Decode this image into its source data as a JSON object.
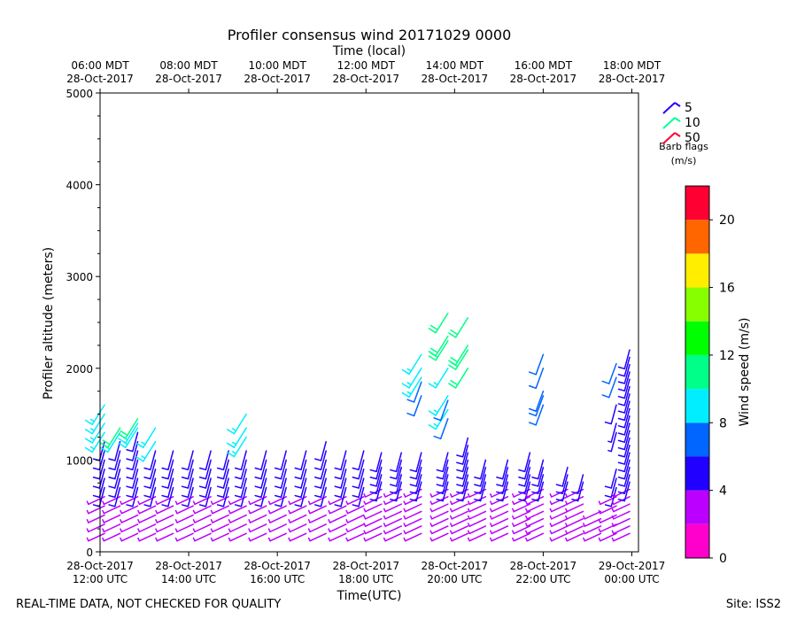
{
  "chart_data": {
    "type": "wind-barb-profile",
    "title": "Profiler consensus wind 20171029 0000",
    "xlabel": "Time(UTC)",
    "top_xlabel": "Time (local)",
    "ylabel": "Profiler altitude (meters)",
    "ylim": [
      0,
      5000
    ],
    "xlim_hours_utc": [
      12.0,
      24.15
    ],
    "y_ticks": [
      0,
      1000,
      2000,
      3000,
      4000,
      5000
    ],
    "y_tick_labels": [
      "0",
      "1000",
      "2000",
      "3000",
      "4000",
      "5000"
    ],
    "bottom_ticks": [
      {
        "hour": 12,
        "line1": "28-Oct-2017",
        "line2": "12:00 UTC"
      },
      {
        "hour": 14,
        "line1": "28-Oct-2017",
        "line2": "14:00 UTC"
      },
      {
        "hour": 16,
        "line1": "28-Oct-2017",
        "line2": "16:00 UTC"
      },
      {
        "hour": 18,
        "line1": "28-Oct-2017",
        "line2": "18:00 UTC"
      },
      {
        "hour": 20,
        "line1": "28-Oct-2017",
        "line2": "20:00 UTC"
      },
      {
        "hour": 22,
        "line1": "28-Oct-2017",
        "line2": "22:00 UTC"
      },
      {
        "hour": 24,
        "line1": "29-Oct-2017",
        "line2": "00:00 UTC"
      }
    ],
    "top_ticks": [
      {
        "hour": 12,
        "line1": "06:00 MDT",
        "line2": "28-Oct-2017"
      },
      {
        "hour": 14,
        "line1": "08:00 MDT",
        "line2": "28-Oct-2017"
      },
      {
        "hour": 16,
        "line1": "10:00 MDT",
        "line2": "28-Oct-2017"
      },
      {
        "hour": 18,
        "line1": "12:00 MDT",
        "line2": "28-Oct-2017"
      },
      {
        "hour": 20,
        "line1": "14:00 MDT",
        "line2": "28-Oct-2017"
      },
      {
        "hour": 22,
        "line1": "16:00 MDT",
        "line2": "28-Oct-2017"
      },
      {
        "hour": 24,
        "line1": "18:00 MDT",
        "line2": "28-Oct-2017"
      }
    ],
    "barb_legend": {
      "entries": [
        {
          "value": "5",
          "color": "#2200ff"
        },
        {
          "value": "10",
          "color": "#00ff99"
        },
        {
          "value": "50",
          "color": "#ff0033"
        }
      ],
      "title_line1": "Barb flags",
      "title_line2": "(m/s)"
    },
    "colorbar": {
      "label": "Wind speed (m/s)",
      "min": 0,
      "max": 22,
      "bins": [
        {
          "from": 0,
          "to": 2,
          "color": "#ff00cc"
        },
        {
          "from": 2,
          "to": 4,
          "color": "#bb00ff"
        },
        {
          "from": 4,
          "to": 6,
          "color": "#2200ff"
        },
        {
          "from": 6,
          "to": 8,
          "color": "#0066ff"
        },
        {
          "from": 8,
          "to": 10,
          "color": "#00eeff"
        },
        {
          "from": 10,
          "to": 12,
          "color": "#00ff88"
        },
        {
          "from": 12,
          "to": 14,
          "color": "#00ff00"
        },
        {
          "from": 14,
          "to": 16,
          "color": "#88ff00"
        },
        {
          "from": 16,
          "to": 18,
          "color": "#ffee00"
        },
        {
          "from": 18,
          "to": 20,
          "color": "#ff6600"
        },
        {
          "from": 20,
          "to": 22,
          "color": "#ff0033"
        }
      ],
      "ticks": [
        0,
        4,
        8,
        12,
        16,
        20
      ],
      "tick_labels": [
        "0",
        "4",
        "8",
        "12",
        "16",
        "20"
      ]
    },
    "profiles": [
      {
        "hour": 12.1,
        "low_top": 1250,
        "step": 100,
        "upper": [
          [
            1300,
            8
          ],
          [
            1400,
            8
          ],
          [
            1500,
            9
          ],
          [
            1600,
            9
          ]
        ]
      },
      {
        "hour": 12.45,
        "low_top": 1250,
        "step": 100,
        "upper": [
          [
            1300,
            9
          ],
          [
            1350,
            10
          ]
        ]
      },
      {
        "hour": 12.85,
        "low_top": 1300,
        "step": 100,
        "upper": [
          [
            1350,
            9
          ],
          [
            1400,
            9
          ],
          [
            1450,
            10
          ]
        ]
      },
      {
        "hour": 13.25,
        "low_top": 1150,
        "step": 100,
        "upper": [
          [
            1200,
            9
          ],
          [
            1350,
            9
          ]
        ]
      },
      {
        "hour": 13.65,
        "low_top": 1150,
        "step": 100,
        "upper": []
      },
      {
        "hour": 14.1,
        "low_top": 1150,
        "step": 100,
        "upper": []
      },
      {
        "hour": 14.5,
        "low_top": 1100,
        "step": 100,
        "upper": []
      },
      {
        "hour": 14.9,
        "low_top": 1100,
        "step": 100,
        "upper": []
      },
      {
        "hour": 15.3,
        "low_top": 1150,
        "step": 100,
        "upper": [
          [
            1250,
            8
          ],
          [
            1350,
            9
          ],
          [
            1500,
            9
          ]
        ]
      },
      {
        "hour": 15.75,
        "low_top": 1150,
        "step": 100,
        "upper": []
      },
      {
        "hour": 16.2,
        "low_top": 1100,
        "step": 100,
        "upper": []
      },
      {
        "hour": 16.65,
        "low_top": 1150,
        "step": 100,
        "upper": []
      },
      {
        "hour": 17.1,
        "low_top": 1200,
        "step": 100,
        "upper": []
      },
      {
        "hour": 17.55,
        "low_top": 1100,
        "step": 100,
        "upper": []
      },
      {
        "hour": 17.95,
        "low_top": 1100,
        "step": 100,
        "upper": []
      },
      {
        "hour": 18.35,
        "low_top": 1100,
        "step": 80,
        "upper": []
      },
      {
        "hour": 18.8,
        "low_top": 1150,
        "step": 80,
        "upper": []
      },
      {
        "hour": 19.25,
        "low_top": 1150,
        "step": 80,
        "upper": [
          [
            1700,
            7
          ],
          [
            1850,
            7
          ],
          [
            1900,
            8
          ],
          [
            2000,
            9
          ],
          [
            2150,
            9
          ]
        ]
      },
      {
        "hour": 19.85,
        "low_top": 1150,
        "step": 80,
        "upper": [
          [
            1450,
            7
          ],
          [
            1550,
            8
          ],
          [
            1650,
            7
          ],
          [
            1700,
            9
          ],
          [
            2000,
            9
          ],
          [
            2300,
            10
          ],
          [
            2350,
            10
          ],
          [
            2600,
            10
          ]
        ]
      },
      {
        "hour": 20.3,
        "low_top": 1250,
        "step": 80,
        "upper": [
          [
            2000,
            10
          ],
          [
            2200,
            11
          ],
          [
            2250,
            10
          ],
          [
            2550,
            10
          ]
        ]
      },
      {
        "hour": 20.7,
        "low_top": 1000,
        "step": 80,
        "upper": []
      },
      {
        "hour": 21.2,
        "low_top": 1000,
        "step": 80,
        "upper": []
      },
      {
        "hour": 21.7,
        "low_top": 1100,
        "step": 80,
        "upper": []
      },
      {
        "hour": 22.0,
        "low_top": 1050,
        "step": 80,
        "upper": [
          [
            1600,
            7
          ],
          [
            1700,
            7
          ],
          [
            1750,
            7
          ],
          [
            2000,
            7
          ],
          [
            2150,
            7
          ]
        ]
      },
      {
        "hour": 22.55,
        "low_top": 950,
        "step": 80,
        "upper": []
      },
      {
        "hour": 22.9,
        "low_top": 900,
        "step": 80,
        "upper": []
      },
      {
        "hour": 23.3,
        "low_top": 500,
        "step": 80,
        "upper": []
      },
      {
        "hour": 23.65,
        "low_top": 900,
        "step": 100,
        "upper": [
          [
            1300,
            4
          ],
          [
            1400,
            4
          ],
          [
            1600,
            5
          ],
          [
            1900,
            6
          ],
          [
            2050,
            6
          ]
        ]
      },
      {
        "hour": 23.95,
        "low_top": 2200,
        "step": 80,
        "upper": []
      }
    ]
  },
  "footer": {
    "left": "REAL-TIME DATA, NOT CHECKED FOR QUALITY",
    "right": "Site: ISS2"
  }
}
